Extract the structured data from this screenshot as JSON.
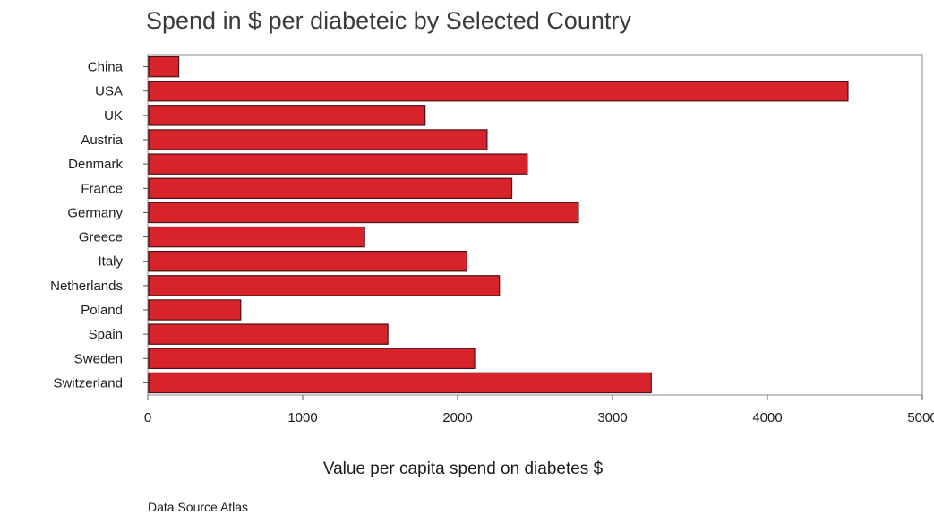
{
  "chart_data": {
    "type": "bar",
    "orientation": "horizontal",
    "title": "Spend in $ per diabeteic by Selected Country",
    "xlabel": "Value per capita spend on diabetes $",
    "ylabel": "",
    "source": "Data Source Atlas",
    "categories": [
      "China",
      "USA",
      "UK",
      "Austria",
      "Denmark",
      "France",
      "Germany",
      "Greece",
      "Italy",
      "Netherlands",
      "Poland",
      "Spain",
      "Sweden",
      "Switzerland"
    ],
    "values": [
      200,
      4520,
      1790,
      2190,
      2450,
      2350,
      2780,
      1400,
      2060,
      2270,
      600,
      1550,
      2110,
      3250
    ],
    "xlim": [
      0,
      5000
    ],
    "xticks": [
      "0",
      "1000",
      "2000",
      "3000",
      "4000",
      "5000"
    ],
    "grid": false,
    "legend": "none",
    "bar_color": "#d9232a",
    "bar_edge_color": "#4a1214"
  }
}
